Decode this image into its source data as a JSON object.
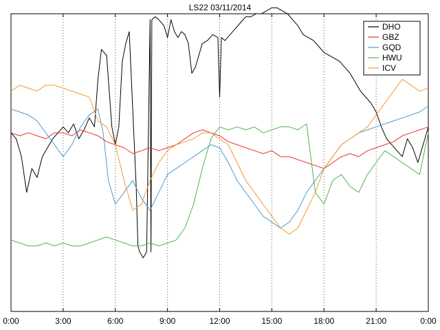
{
  "chart_data": {
    "type": "line",
    "title": "LS22 03/11/2014",
    "xlabel": "",
    "ylabel": "",
    "xlim": [
      0,
      24
    ],
    "ylim": [
      0,
      1
    ],
    "x_ticks": [
      0,
      3,
      6,
      9,
      12,
      15,
      18,
      21,
      24
    ],
    "x_tick_labels": [
      "0:00",
      "3:00",
      "6:00",
      "9:00",
      "12:00",
      "15:00",
      "18:00",
      "21:00",
      "0:00"
    ],
    "grid": "vertical dotted",
    "legend_position": "top-right",
    "series": [
      {
        "name": "DHO",
        "color": "#000000",
        "x": [
          0,
          0.3,
          0.6,
          0.9,
          1.2,
          1.5,
          1.8,
          2.1,
          2.4,
          2.7,
          3.0,
          3.3,
          3.6,
          3.9,
          4.2,
          4.5,
          4.8,
          5.0,
          5.2,
          5.5,
          5.8,
          6.0,
          6.2,
          6.4,
          6.6,
          6.8,
          7.0,
          7.2,
          7.3,
          7.4,
          7.6,
          7.8,
          8.0,
          8.05,
          8.1,
          8.3,
          8.5,
          8.8,
          9.0,
          9.2,
          9.4,
          9.6,
          9.8,
          10.0,
          10.2,
          10.4,
          10.6,
          10.8,
          11.0,
          11.3,
          11.6,
          11.9,
          12.0,
          12.1,
          12.3,
          12.6,
          12.9,
          13.2,
          13.5,
          13.8,
          14.1,
          14.4,
          14.7,
          15.0,
          15.3,
          15.6,
          15.9,
          16.2,
          16.5,
          16.8,
          17.1,
          17.4,
          17.7,
          18.0,
          18.3,
          18.6,
          18.9,
          19.2,
          19.5,
          19.8,
          20.1,
          20.4,
          20.7,
          21.0,
          21.3,
          21.6,
          21.9,
          22.2,
          22.5,
          22.8,
          23.1,
          23.4,
          23.7,
          24.0
        ],
        "values": [
          0.6,
          0.58,
          0.52,
          0.4,
          0.48,
          0.45,
          0.52,
          0.55,
          0.58,
          0.6,
          0.62,
          0.6,
          0.63,
          0.58,
          0.61,
          0.65,
          0.62,
          0.78,
          0.88,
          0.86,
          0.62,
          0.56,
          0.62,
          0.84,
          0.9,
          0.94,
          0.68,
          0.42,
          0.22,
          0.2,
          0.18,
          0.2,
          0.98,
          0.2,
          0.98,
          0.99,
          0.98,
          0.96,
          0.92,
          0.98,
          0.94,
          0.92,
          0.94,
          0.93,
          0.9,
          0.8,
          0.82,
          0.86,
          0.9,
          0.91,
          0.93,
          0.92,
          0.72,
          0.92,
          0.91,
          0.93,
          0.95,
          0.97,
          0.99,
          0.99,
          1.0,
          1.0,
          1.01,
          1.02,
          1.02,
          1.01,
          1.0,
          0.98,
          0.96,
          0.93,
          0.92,
          0.91,
          0.89,
          0.87,
          0.86,
          0.85,
          0.84,
          0.82,
          0.8,
          0.77,
          0.74,
          0.72,
          0.7,
          0.67,
          0.62,
          0.58,
          0.56,
          0.54,
          0.52,
          0.58,
          0.55,
          0.5,
          0.56,
          0.62
        ]
      },
      {
        "name": "GBZ",
        "color": "#e8312f",
        "x": [
          0,
          0.5,
          1.0,
          1.5,
          2.0,
          2.5,
          3.0,
          3.5,
          4.0,
          4.5,
          5.0,
          5.5,
          6.0,
          6.5,
          7.0,
          7.5,
          8.0,
          8.5,
          9.0,
          9.5,
          10.0,
          10.5,
          11.0,
          11.5,
          12.0,
          12.5,
          13.0,
          13.5,
          14.0,
          14.5,
          15.0,
          15.5,
          16.0,
          16.5,
          17.0,
          17.5,
          18.0,
          18.5,
          19.0,
          19.5,
          20.0,
          20.5,
          21.0,
          21.5,
          22.0,
          22.5,
          23.0,
          23.5,
          24.0
        ],
        "values": [
          0.6,
          0.59,
          0.6,
          0.59,
          0.58,
          0.6,
          0.6,
          0.59,
          0.61,
          0.6,
          0.59,
          0.57,
          0.56,
          0.55,
          0.53,
          0.54,
          0.55,
          0.54,
          0.55,
          0.56,
          0.58,
          0.6,
          0.61,
          0.6,
          0.59,
          0.57,
          0.56,
          0.55,
          0.54,
          0.53,
          0.54,
          0.52,
          0.52,
          0.51,
          0.5,
          0.49,
          0.48,
          0.5,
          0.52,
          0.53,
          0.52,
          0.54,
          0.55,
          0.56,
          0.57,
          0.59,
          0.6,
          0.61,
          0.62
        ]
      },
      {
        "name": "GQD",
        "color": "#4a9bc9",
        "x": [
          0,
          0.5,
          1.0,
          1.5,
          2.0,
          2.5,
          3.0,
          3.5,
          4.0,
          4.5,
          5.0,
          5.3,
          5.6,
          6.0,
          6.5,
          7.0,
          7.5,
          8.0,
          8.5,
          9.0,
          9.5,
          10.0,
          10.5,
          11.0,
          11.5,
          12.0,
          12.5,
          13.0,
          13.5,
          14.0,
          14.5,
          15.0,
          15.5,
          16.0,
          16.5,
          17.0,
          17.5,
          18.0,
          18.5,
          19.0,
          19.5,
          20.0,
          20.5,
          21.0,
          21.5,
          22.0,
          22.5,
          23.0,
          23.5,
          24.0
        ],
        "values": [
          0.68,
          0.67,
          0.66,
          0.64,
          0.6,
          0.56,
          0.52,
          0.56,
          0.62,
          0.66,
          0.68,
          0.6,
          0.44,
          0.36,
          0.4,
          0.44,
          0.38,
          0.34,
          0.4,
          0.46,
          0.48,
          0.5,
          0.52,
          0.54,
          0.56,
          0.55,
          0.5,
          0.44,
          0.4,
          0.36,
          0.32,
          0.3,
          0.28,
          0.3,
          0.34,
          0.4,
          0.44,
          0.48,
          0.52,
          0.56,
          0.58,
          0.6,
          0.61,
          0.62,
          0.63,
          0.64,
          0.65,
          0.66,
          0.67,
          0.69
        ]
      },
      {
        "name": "HWU",
        "color": "#4fb34f",
        "x": [
          0,
          0.5,
          1.0,
          1.5,
          2.0,
          2.5,
          3.0,
          3.5,
          4.0,
          4.5,
          5.0,
          5.5,
          6.0,
          6.5,
          7.0,
          7.5,
          8.0,
          8.5,
          9.0,
          9.5,
          10.0,
          10.5,
          11.0,
          11.5,
          12.0,
          12.5,
          13.0,
          13.5,
          14.0,
          14.5,
          15.0,
          15.5,
          16.0,
          16.5,
          17.0,
          17.5,
          18.0,
          18.5,
          19.0,
          19.5,
          20.0,
          20.5,
          21.0,
          21.5,
          22.0,
          22.5,
          23.0,
          23.5,
          24.0
        ],
        "values": [
          0.24,
          0.23,
          0.22,
          0.22,
          0.23,
          0.22,
          0.23,
          0.22,
          0.22,
          0.23,
          0.24,
          0.25,
          0.24,
          0.23,
          0.22,
          0.22,
          0.23,
          0.22,
          0.23,
          0.24,
          0.28,
          0.36,
          0.48,
          0.58,
          0.62,
          0.61,
          0.62,
          0.61,
          0.62,
          0.6,
          0.61,
          0.62,
          0.62,
          0.61,
          0.63,
          0.4,
          0.36,
          0.44,
          0.46,
          0.42,
          0.4,
          0.46,
          0.5,
          0.54,
          0.52,
          0.5,
          0.48,
          0.46,
          0.6
        ]
      },
      {
        "name": "ICV",
        "color": "#f39a2f",
        "x": [
          0,
          0.5,
          1.0,
          1.5,
          2.0,
          2.5,
          3.0,
          3.5,
          4.0,
          4.5,
          5.0,
          5.5,
          6.0,
          6.5,
          7.0,
          7.5,
          8.0,
          8.5,
          9.0,
          9.5,
          10.0,
          10.5,
          11.0,
          11.5,
          12.0,
          12.5,
          13.0,
          13.5,
          14.0,
          14.5,
          15.0,
          15.5,
          16.0,
          16.5,
          17.0,
          17.5,
          18.0,
          18.5,
          19.0,
          19.5,
          20.0,
          20.5,
          21.0,
          21.5,
          22.0,
          22.5,
          23.0,
          23.5,
          24.0
        ],
        "values": [
          0.74,
          0.76,
          0.75,
          0.74,
          0.76,
          0.76,
          0.75,
          0.74,
          0.73,
          0.72,
          0.64,
          0.62,
          0.56,
          0.44,
          0.34,
          0.36,
          0.44,
          0.5,
          0.54,
          0.56,
          0.57,
          0.58,
          0.6,
          0.6,
          0.58,
          0.56,
          0.5,
          0.44,
          0.4,
          0.36,
          0.32,
          0.28,
          0.26,
          0.28,
          0.34,
          0.4,
          0.48,
          0.52,
          0.56,
          0.58,
          0.6,
          0.62,
          0.66,
          0.7,
          0.74,
          0.78,
          0.76,
          0.74,
          0.75
        ]
      }
    ]
  }
}
